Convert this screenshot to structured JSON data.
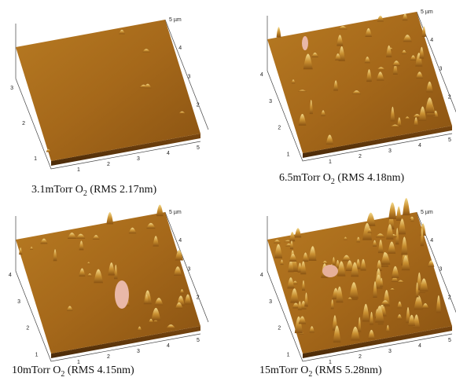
{
  "panels": [
    {
      "caption": {
        "text": "3.1mTorr O",
        "sub": "2",
        "rest": " (RMS 2.17nm)"
      },
      "scale_label": "5 µm",
      "right_ticks": [
        "4",
        "3",
        "2"
      ],
      "left_ticks": [
        "3",
        "2",
        "1"
      ],
      "bottom_ticks": [
        "1",
        "2",
        "3",
        "4",
        "5"
      ]
    },
    {
      "caption": {
        "text": "6.5mTorr O",
        "sub": "2",
        "rest": " (RMS 4.18nm)"
      },
      "scale_label": "5 µm",
      "right_ticks": [
        "4",
        "3",
        "2"
      ],
      "left_ticks": [
        "4",
        "3",
        "2",
        "1"
      ],
      "bottom_ticks": [
        "1",
        "2",
        "3",
        "4",
        "5"
      ]
    },
    {
      "caption": {
        "text": "10mTorr O",
        "sub": "2",
        "rest": "  (RMS 4.15nm)"
      },
      "scale_label": "5 µm",
      "right_ticks": [
        "4",
        "3",
        "2"
      ],
      "left_ticks": [
        "4",
        "3",
        "2",
        "1"
      ],
      "bottom_ticks": [
        "1",
        "2",
        "3",
        "4",
        "5"
      ]
    },
    {
      "caption": {
        "text": "15mTorr O",
        "sub": "2",
        "rest": " (RMS 5.28nm)"
      },
      "scale_label": "5 µm",
      "right_ticks": [
        "4",
        "3",
        "2"
      ],
      "left_ticks": [
        "4",
        "3",
        "2",
        "1"
      ],
      "bottom_ticks": [
        "1",
        "2",
        "3",
        "4",
        "5"
      ]
    }
  ]
}
